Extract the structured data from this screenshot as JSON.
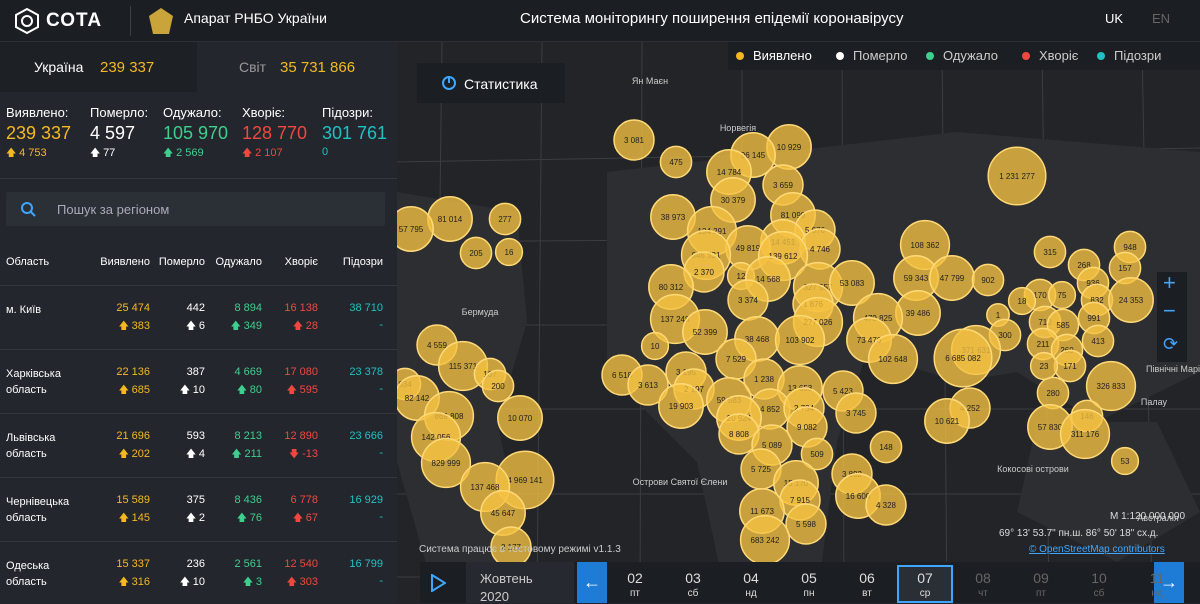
{
  "header": {
    "logo": "СОТА",
    "org": "Апарат РНБО України",
    "title": "Система моніторингу поширення епідемії коронавірусу",
    "langs": [
      "UK",
      "EN"
    ]
  },
  "summary": {
    "ukraine_label": "Україна",
    "ukraine_value": "239 337",
    "world_label": "Світ",
    "world_value": "35 731 866"
  },
  "stats": [
    {
      "label": "Виявлено:",
      "value": "239 337",
      "delta": "4 753"
    },
    {
      "label": "Померло:",
      "value": "4 597",
      "delta": "77"
    },
    {
      "label": "Одужало:",
      "value": "105 970",
      "delta": "2 569"
    },
    {
      "label": "Хворіє:",
      "value": "128 770",
      "delta": "2 107"
    },
    {
      "label": "Підозри:",
      "value": "301 761",
      "delta": "0"
    }
  ],
  "search": {
    "placeholder": "Пошук за регіоном"
  },
  "table": {
    "headers": [
      "Область",
      "Виявлено",
      "Померло",
      "Одужало",
      "Хворіє",
      "Підозри"
    ],
    "rows": [
      [
        "м. Київ",
        [
          "25 474",
          "383"
        ],
        [
          "442",
          "6"
        ],
        [
          "8 894",
          "349"
        ],
        [
          "16 138",
          "28"
        ],
        [
          "38 710",
          "-"
        ]
      ],
      [
        "Харківська область",
        [
          "22 136",
          "685"
        ],
        [
          "387",
          "10"
        ],
        [
          "4 669",
          "80"
        ],
        [
          "17 080",
          "595"
        ],
        [
          "23 378",
          "-"
        ]
      ],
      [
        "Львівська область",
        [
          "21 696",
          "202"
        ],
        [
          "593",
          "4"
        ],
        [
          "8 213",
          "211"
        ],
        [
          "12 890",
          "-13"
        ],
        [
          "23 666",
          "-"
        ]
      ],
      [
        "Чернівецька область",
        [
          "15 589",
          "145"
        ],
        [
          "375",
          "2"
        ],
        [
          "8 436",
          "76"
        ],
        [
          "6 778",
          "67"
        ],
        [
          "16 929",
          "-"
        ]
      ],
      [
        "Одеська область",
        [
          "15 337",
          "316"
        ],
        [
          "236",
          "10"
        ],
        [
          "2 561",
          "3"
        ],
        [
          "12 540",
          "303"
        ],
        [
          "16 799",
          "-"
        ]
      ]
    ]
  },
  "map": {
    "stats_button": "Статистика",
    "legend": [
      "Виявлено",
      "Померло",
      "Одужало",
      "Хворіє",
      "Підозри"
    ],
    "places": [
      "Ян Маєн",
      "Норвегія",
      "Бермуда",
      "Острови Святої Єлени",
      "Кокосові острови",
      "Північні Маріанські остро",
      "Палау",
      "Австралія"
    ],
    "bubbles": [
      "3 081",
      "475",
      "10 929",
      "96 145",
      "14 784",
      "1 231 277",
      "3 659",
      "38 973",
      "30 379",
      "81 014",
      "277",
      "57 795",
      "81 090",
      "134 291",
      "5 676",
      "14 451",
      "49 819",
      "4 746",
      "108 362",
      "315",
      "948",
      "205",
      "16",
      "646 531",
      "139 612",
      "268",
      "157",
      "2 370",
      "12",
      "14 568",
      "59 343",
      "47 799",
      "902",
      "936",
      "80 312",
      "327 557",
      "53 083",
      "170",
      "75",
      "832",
      "24 353",
      "18",
      "3 374",
      "1 876",
      "39 486",
      "1",
      "710",
      "585",
      "991",
      "137 248",
      "277 026",
      "479 825",
      "52 399",
      "300",
      "413",
      "38 468",
      "103 902",
      "73 476",
      "211",
      "371 631",
      "4 559",
      "10",
      "260",
      "7 529",
      "102 648",
      "6 685 082",
      "115 371",
      "107",
      "171",
      "23",
      "6 518",
      "3 195",
      "634",
      "1 238",
      "200",
      "3 613",
      "2 197",
      "13 653",
      "5 423",
      "326 833",
      "82 142",
      "280",
      "59 583",
      "4 852",
      "2 734",
      "19 903",
      "869 808",
      "10 070",
      "4 252",
      "20 924",
      "3 745",
      "146",
      "10 621",
      "9 082",
      "57 830",
      "8 808",
      "311 176",
      "142 056",
      "5 089",
      "148",
      "509",
      "829 999",
      "53",
      "5 725",
      "3 892",
      "15 170",
      "4 969 141",
      "137 468",
      "16 600",
      "7 915",
      "4 328",
      "11 673",
      "45 647",
      "5 598",
      "683 242",
      "2 177"
    ],
    "scale": "М 1:120 000 000",
    "coords": "69° 13' 53.7\" пн.ш. 86° 50' 18\" сх.д.",
    "attribution": "© OpenStreetMap contributors",
    "notice": "Система працює в тестовому режимі v1.1.3"
  },
  "timeline": {
    "month": "Жовтень",
    "year": "2020",
    "days": [
      [
        "02",
        "пт"
      ],
      [
        "03",
        "сб"
      ],
      [
        "04",
        "нд"
      ],
      [
        "05",
        "пн"
      ],
      [
        "06",
        "вт"
      ],
      [
        "07",
        "ср"
      ],
      [
        "08",
        "чт"
      ],
      [
        "09",
        "пт"
      ],
      [
        "10",
        "сб"
      ],
      [
        "11",
        "нд"
      ]
    ]
  }
}
